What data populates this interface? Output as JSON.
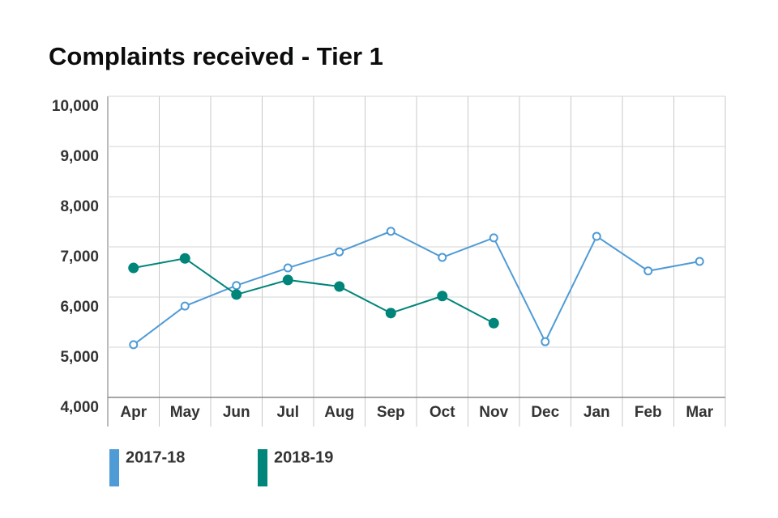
{
  "chart_data": {
    "type": "line",
    "title": "Complaints received - Tier 1",
    "categories": [
      "Apr",
      "May",
      "Jun",
      "Jul",
      "Aug",
      "Sep",
      "Oct",
      "Nov",
      "Dec",
      "Jan",
      "Feb",
      "Mar"
    ],
    "series": [
      {
        "name": "2017-18",
        "color": "#4f9bd6",
        "values": [
          5050,
          5820,
          6230,
          6580,
          6900,
          7310,
          6790,
          7180,
          5110,
          7210,
          6520,
          6710
        ]
      },
      {
        "name": "2018-19",
        "color": "#00857a",
        "values": [
          6580,
          6770,
          6050,
          6340,
          6210,
          5680,
          6020,
          5480,
          null,
          null,
          null,
          null
        ]
      }
    ],
    "ylim": [
      4000,
      10000
    ],
    "yticks": [
      {
        "value": 4000,
        "label": "4,000"
      },
      {
        "value": 5000,
        "label": "5,000"
      },
      {
        "value": 6000,
        "label": "6,000"
      },
      {
        "value": 7000,
        "label": "7,000"
      },
      {
        "value": 8000,
        "label": "8,000"
      },
      {
        "value": 9000,
        "label": "9,000"
      },
      {
        "value": 10000,
        "label": "10,000"
      }
    ],
    "grid": true
  }
}
